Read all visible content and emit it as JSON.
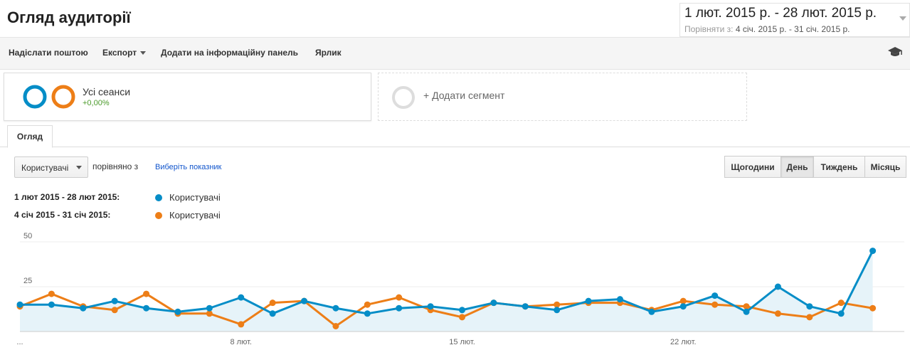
{
  "header": {
    "title": "Огляд аудиторії",
    "date_range": "1 лют. 2015 р. - 28 лют. 2015 р.",
    "compare_label": "Порівняти з:",
    "compare_range": "4 січ. 2015 р. - 31 січ. 2015 р."
  },
  "toolbar": {
    "email": "Надіслати поштою",
    "export": "Експорт",
    "add_dashboard": "Додати на інформаційну панель",
    "shortcut": "Ярлик",
    "icon": "graduation-cap-icon"
  },
  "segments": {
    "active": {
      "name": "Усі сеанси",
      "change": "+0,00%"
    },
    "add_label": "+ Додати сегмент"
  },
  "tabs": {
    "overview": "Огляд"
  },
  "controls": {
    "metric": "Користувачі",
    "compare_with": "порівняно з",
    "select_metric": "Виберіть показник",
    "granularity": [
      "Щогодини",
      "День",
      "Тиждень",
      "Місяць"
    ],
    "active_granularity": "День"
  },
  "legend": [
    {
      "range": "1 лют 2015 - 28 лют 2015:",
      "metric": "Користувачі",
      "color": "#058dc7"
    },
    {
      "range": "4 січ 2015 - 31 січ 2015:",
      "metric": "Користувачі",
      "color": "#ed7e17"
    }
  ],
  "chart_data": {
    "type": "line",
    "y_ticks": [
      "50",
      "25"
    ],
    "ylim": [
      0,
      50
    ],
    "x_tick_labels": [
      "...",
      "8 лют.",
      "15 лют.",
      "22 лют."
    ],
    "x_tick_days": [
      0,
      7,
      14,
      21
    ],
    "x": [
      1,
      2,
      3,
      4,
      5,
      6,
      7,
      8,
      9,
      10,
      11,
      12,
      13,
      14,
      15,
      16,
      17,
      18,
      19,
      20,
      21,
      22,
      23,
      24,
      25,
      26,
      27,
      28,
      29
    ],
    "series": [
      {
        "name": "Користувачі",
        "range": "1 лют 2015 - 28 лют 2015",
        "color": "#058dc7",
        "values": [
          15,
          15,
          13,
          17,
          13,
          11,
          13,
          19,
          10,
          17,
          13,
          10,
          13,
          14,
          12,
          16,
          14,
          12,
          17,
          18,
          11,
          14,
          20,
          11,
          25,
          14,
          10,
          45,
          null
        ]
      },
      {
        "name": "Користувачі",
        "range": "4 січ 2015 - 31 січ 2015",
        "color": "#ed7e17",
        "values": [
          14,
          21,
          14,
          12,
          21,
          10,
          10,
          4,
          16,
          17,
          3,
          15,
          19,
          12,
          8,
          16,
          14,
          15,
          16,
          16,
          12,
          17,
          15,
          14,
          10,
          8,
          16,
          13,
          null
        ]
      }
    ]
  }
}
